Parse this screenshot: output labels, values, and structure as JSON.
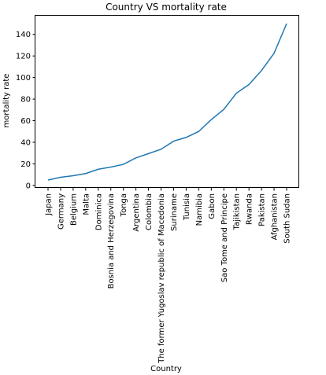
{
  "chart_data": {
    "type": "line",
    "title": "Country VS mortality rate",
    "xlabel": "Country",
    "ylabel": "mortality rate",
    "categories": [
      "Japan",
      "Germany",
      "Belgium",
      "Malta",
      "Dominica",
      "Bosnia and Herzegovina",
      "Tonga",
      "Argentina",
      "Colombia",
      "The former Yugoslav republic of Macedonia",
      "Suriname",
      "Tunisia",
      "Namibia",
      "Gabon",
      "Sao Tome and Principe",
      "Tajikistan",
      "Rwanda",
      "Pakistan",
      "Afghanistan",
      "South Sudan"
    ],
    "series": [
      {
        "values": [
          5,
          7.5,
          9,
          11,
          15,
          17,
          19.5,
          25.5,
          29.5,
          33.5,
          41,
          44.5,
          50,
          61,
          70.5,
          85.5,
          93.5,
          106.5,
          122.5,
          150
        ]
      }
    ],
    "yticks": [
      0,
      20,
      40,
      60,
      80,
      100,
      120,
      140
    ],
    "ylim": [
      -2.3,
      157.3
    ],
    "grid": false,
    "line_color": "#1f77b4"
  }
}
